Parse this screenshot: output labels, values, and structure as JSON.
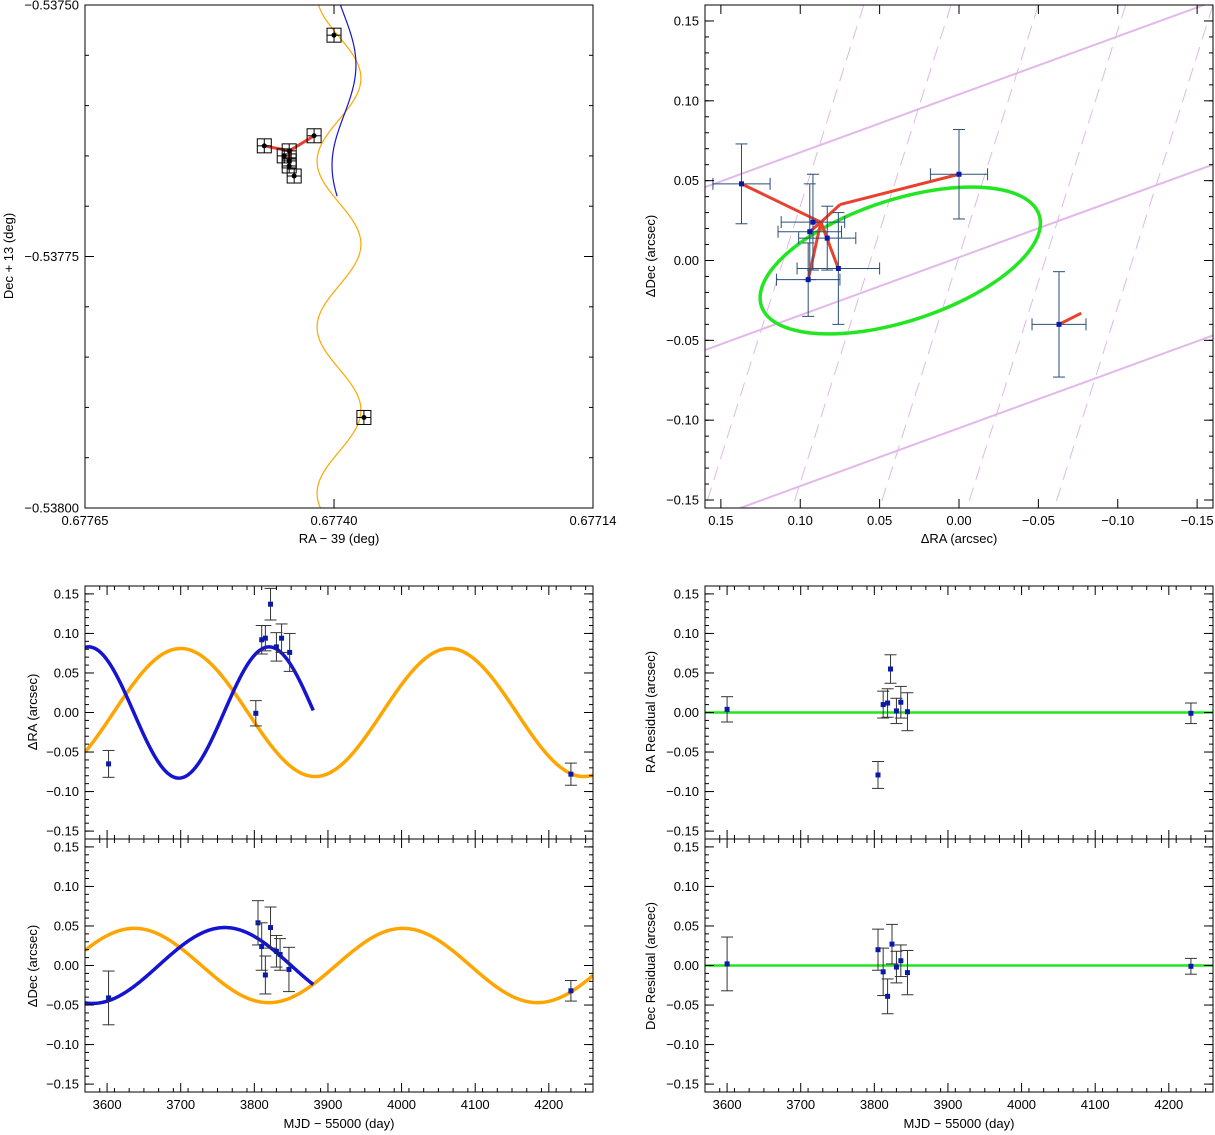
{
  "colors": {
    "axis": "#000000",
    "orange": "#ffa500",
    "blue": "#1414d2",
    "red": "#e8412e",
    "green": "#22e622",
    "violet": "#e2b8ea",
    "point": "#0a1aa8",
    "errbar_top": "#2a4e78",
    "errbar": "#333333"
  },
  "chart_data": [
    {
      "id": "sky",
      "type": "scatter",
      "xlabel": "RA − 39 (deg)",
      "ylabel": "Dec + 13 (deg)",
      "xlim": [
        0.67765,
        0.67714
      ],
      "ylim": [
        -0.538,
        -0.5375
      ],
      "xticks": [
        0.67765,
        0.6774,
        0.67714
      ],
      "xtick_labels": [
        "0.67765",
        "0.67740",
        "0.67714"
      ],
      "yticks": [
        -0.5375,
        -0.53775,
        -0.538
      ],
      "ytick_labels": [
        "−0.53750",
        "−0.53775",
        "−0.53800"
      ],
      "points": [
        {
          "x": 0.67747,
          "y": -0.53764
        },
        {
          "x": 0.67745,
          "y": -0.53765
        },
        {
          "x": 0.677445,
          "y": -0.537645
        },
        {
          "x": 0.677445,
          "y": -0.53766
        },
        {
          "x": 0.677445,
          "y": -0.537655
        },
        {
          "x": 0.67744,
          "y": -0.53767
        },
        {
          "x": 0.67742,
          "y": -0.53763
        },
        {
          "x": 0.6774,
          "y": -0.53753
        },
        {
          "x": 0.67737,
          "y": -0.53791
        }
      ],
      "red_path": [
        [
          0.677445,
          -0.537645
        ],
        [
          0.67742,
          -0.53763
        ],
        [
          0.677445,
          -0.537645
        ],
        [
          0.67747,
          -0.53764
        ],
        [
          0.677445,
          -0.537645
        ],
        [
          0.677445,
          -0.53766
        ]
      ],
      "blue_track": {
        "x0": 0.67739,
        "amp": 1.2e-05,
        "slope": 1e-06,
        "y_from": -0.5375,
        "y_to": -0.53769,
        "period": 0.0002,
        "phase": 0.3
      },
      "orange_track": {
        "x0": 0.677395,
        "amp": 2.2e-05,
        "y_from": -0.5375,
        "y_to": -0.538,
        "period": 0.000165,
        "phase": 1.2
      }
    },
    {
      "id": "orbit",
      "type": "scatter",
      "xlabel": "ΔRA (arcsec)",
      "ylabel": "ΔDec (arcsec)",
      "xlim": [
        0.16,
        -0.16
      ],
      "ylim": [
        -0.155,
        0.16
      ],
      "xticks": [
        0.15,
        0.1,
        0.05,
        0.0,
        -0.05,
        -0.1,
        -0.15
      ],
      "xtick_labels": [
        "0.15",
        "0.10",
        "0.05",
        "0.00",
        "−0.05",
        "−0.10",
        "−0.15"
      ],
      "yticks": [
        0.15,
        0.1,
        0.05,
        0.0,
        -0.05,
        -0.1,
        -0.15
      ],
      "ytick_labels": [
        "0.15",
        "0.10",
        "0.05",
        "0.00",
        "−0.05",
        "−0.10",
        "−0.15"
      ],
      "points": [
        {
          "x": 0.137,
          "y": 0.048,
          "ex": 0.018,
          "ey": 0.025
        },
        {
          "x": 0.0,
          "y": 0.054,
          "ex": 0.018,
          "ey": 0.028
        },
        {
          "x": 0.092,
          "y": 0.024,
          "ex": 0.02,
          "ey": 0.03
        },
        {
          "x": 0.094,
          "y": 0.018,
          "ex": 0.02,
          "ey": 0.03
        },
        {
          "x": 0.083,
          "y": 0.014,
          "ex": 0.018,
          "ey": 0.02
        },
        {
          "x": 0.076,
          "y": -0.005,
          "ex": 0.026,
          "ey": 0.035
        },
        {
          "x": 0.095,
          "y": -0.012,
          "ex": 0.02,
          "ey": 0.023
        },
        {
          "x": -0.063,
          "y": -0.04,
          "ex": 0.017,
          "ey": 0.033
        }
      ],
      "model_points": [
        [
          0.087,
          0.024
        ],
        [
          0.075,
          0.035
        ],
        [
          0.087,
          0.024
        ],
        [
          0.083,
          0.014
        ],
        [
          0.087,
          0.024
        ],
        [
          0.092,
          0.024
        ],
        [
          0.087,
          0.024
        ],
        [
          0.094,
          -0.012
        ],
        [
          0.087,
          0.024
        ],
        [
          0.078,
          0.0
        ]
      ],
      "ellipse": {
        "cx": 0.037,
        "cy": 0.0,
        "a": 0.092,
        "b": 0.038,
        "angle_deg": -18
      },
      "solid_lines": [
        {
          "slope": -0.363,
          "intercept": 0.104
        },
        {
          "slope": -0.363,
          "intercept": 0.002
        },
        {
          "slope": -0.363,
          "intercept": -0.105
        }
      ],
      "dashed_lines": [
        {
          "x_at_top": 0.06,
          "x_at_bottom": 0.16
        },
        {
          "x_at_top": 0.005,
          "x_at_bottom": 0.105
        },
        {
          "x_at_top": -0.05,
          "x_at_bottom": 0.05
        },
        {
          "x_at_top": -0.105,
          "x_at_bottom": -0.005
        },
        {
          "x_at_top": -0.16,
          "x_at_bottom": -0.06
        }
      ]
    },
    {
      "id": "ra-time",
      "type": "scatter",
      "xlabel": "",
      "ylabel": "ΔRA (arcsec)",
      "xlim": [
        3570,
        4260
      ],
      "ylim": [
        -0.16,
        0.16
      ],
      "xticks": [
        3600,
        3700,
        3800,
        3900,
        4000,
        4100,
        4200
      ],
      "yticks": [
        0.15,
        0.1,
        0.05,
        0.0,
        -0.05,
        -0.1,
        -0.15
      ],
      "ytick_labels": [
        "0.15",
        "0.10",
        "0.05",
        "0.00",
        "−0.05",
        "−0.10",
        "−0.15"
      ],
      "points": [
        {
          "x": 3602,
          "y": -0.065,
          "ey": 0.017
        },
        {
          "x": 3802,
          "y": -0.001,
          "ey": 0.016
        },
        {
          "x": 3810,
          "y": 0.092,
          "ey": 0.018
        },
        {
          "x": 3815,
          "y": 0.094,
          "ey": 0.016
        },
        {
          "x": 3822,
          "y": 0.137,
          "ey": 0.02
        },
        {
          "x": 3830,
          "y": 0.083,
          "ey": 0.018
        },
        {
          "x": 3837,
          "y": 0.094,
          "ey": 0.018
        },
        {
          "x": 3848,
          "y": 0.076,
          "ey": 0.024
        },
        {
          "x": 4230,
          "y": -0.078,
          "ey": 0.014
        }
      ],
      "blue_curve": {
        "t0": 3570,
        "t1": 3880,
        "amp": 0.083,
        "period": 245,
        "center": 3820
      },
      "orange_curve": {
        "t0": 3570,
        "t1": 4260,
        "amp": 0.081,
        "period": 365,
        "center": 3700
      }
    },
    {
      "id": "ra-resid",
      "type": "scatter",
      "xlabel": "",
      "ylabel": "RA Residual (arcsec)",
      "xlim": [
        3570,
        4260
      ],
      "ylim": [
        -0.16,
        0.16
      ],
      "xticks": [
        3600,
        3700,
        3800,
        3900,
        4000,
        4100,
        4200
      ],
      "yticks": [
        0.15,
        0.1,
        0.05,
        0.0,
        -0.05,
        -0.1,
        -0.15
      ],
      "ytick_labels": [
        "0.15",
        "0.10",
        "0.05",
        "0.00",
        "−0.05",
        "−0.10",
        "−0.15"
      ],
      "points": [
        {
          "x": 3600,
          "y": 0.004,
          "ey": 0.016
        },
        {
          "x": 3805,
          "y": -0.079,
          "ey": 0.017
        },
        {
          "x": 3812,
          "y": 0.01,
          "ey": 0.017
        },
        {
          "x": 3818,
          "y": 0.012,
          "ey": 0.018
        },
        {
          "x": 3822,
          "y": 0.055,
          "ey": 0.018
        },
        {
          "x": 3830,
          "y": 0.002,
          "ey": 0.016
        },
        {
          "x": 3836,
          "y": 0.013,
          "ey": 0.02
        },
        {
          "x": 3845,
          "y": 0.001,
          "ey": 0.024
        },
        {
          "x": 4230,
          "y": -0.001,
          "ey": 0.013
        }
      ]
    },
    {
      "id": "dec-time",
      "type": "scatter",
      "xlabel": "MJD − 55000 (day)",
      "ylabel": "ΔDec (arcsec)",
      "xlim": [
        3570,
        4260
      ],
      "ylim": [
        -0.16,
        0.16
      ],
      "xticks": [
        3600,
        3700,
        3800,
        3900,
        4000,
        4100,
        4200
      ],
      "xtick_labels": [
        "3600",
        "3700",
        "3800",
        "3900",
        "4000",
        "4100",
        "4200"
      ],
      "yticks": [
        0.15,
        0.1,
        0.05,
        0.0,
        -0.05,
        -0.1,
        -0.15
      ],
      "ytick_labels": [
        "0.15",
        "0.10",
        "0.05",
        "0.00",
        "−0.05",
        "−0.10",
        "−0.15"
      ],
      "points": [
        {
          "x": 3602,
          "y": -0.041,
          "ey": 0.034
        },
        {
          "x": 3805,
          "y": 0.054,
          "ey": 0.028
        },
        {
          "x": 3810,
          "y": 0.024,
          "ey": 0.03
        },
        {
          "x": 3815,
          "y": -0.012,
          "ey": 0.024
        },
        {
          "x": 3822,
          "y": 0.048,
          "ey": 0.026
        },
        {
          "x": 3830,
          "y": 0.018,
          "ey": 0.02
        },
        {
          "x": 3835,
          "y": 0.014,
          "ey": 0.02
        },
        {
          "x": 3847,
          "y": -0.005,
          "ey": 0.028
        },
        {
          "x": 4230,
          "y": -0.032,
          "ey": 0.013
        }
      ],
      "blue_curve": {
        "t0": 3570,
        "t1": 3880,
        "amp": 0.048,
        "period": 360,
        "center": 3760
      },
      "orange_curve": {
        "t0": 3570,
        "t1": 4260,
        "amp": 0.047,
        "period": 365,
        "center": 3637
      }
    },
    {
      "id": "dec-resid",
      "type": "scatter",
      "xlabel": "MJD − 55000 (day)",
      "ylabel": "Dec Residual (arcsec)",
      "xlim": [
        3570,
        4260
      ],
      "ylim": [
        -0.16,
        0.16
      ],
      "xticks": [
        3600,
        3700,
        3800,
        3900,
        4000,
        4100,
        4200
      ],
      "xtick_labels": [
        "3600",
        "3700",
        "3800",
        "3900",
        "4000",
        "4100",
        "4200"
      ],
      "yticks": [
        0.15,
        0.1,
        0.05,
        0.0,
        -0.05,
        -0.1,
        -0.15
      ],
      "ytick_labels": [
        "0.15",
        "0.10",
        "0.05",
        "0.00",
        "−0.05",
        "−0.10",
        "−0.15"
      ],
      "points": [
        {
          "x": 3600,
          "y": 0.002,
          "ey": 0.034
        },
        {
          "x": 3805,
          "y": 0.02,
          "ey": 0.026
        },
        {
          "x": 3812,
          "y": -0.008,
          "ey": 0.03
        },
        {
          "x": 3818,
          "y": -0.039,
          "ey": 0.022
        },
        {
          "x": 3824,
          "y": 0.027,
          "ey": 0.025
        },
        {
          "x": 3830,
          "y": -0.002,
          "ey": 0.02
        },
        {
          "x": 3836,
          "y": 0.006,
          "ey": 0.02
        },
        {
          "x": 3845,
          "y": -0.009,
          "ey": 0.028
        },
        {
          "x": 4230,
          "y": -0.001,
          "ey": 0.01
        }
      ]
    }
  ]
}
